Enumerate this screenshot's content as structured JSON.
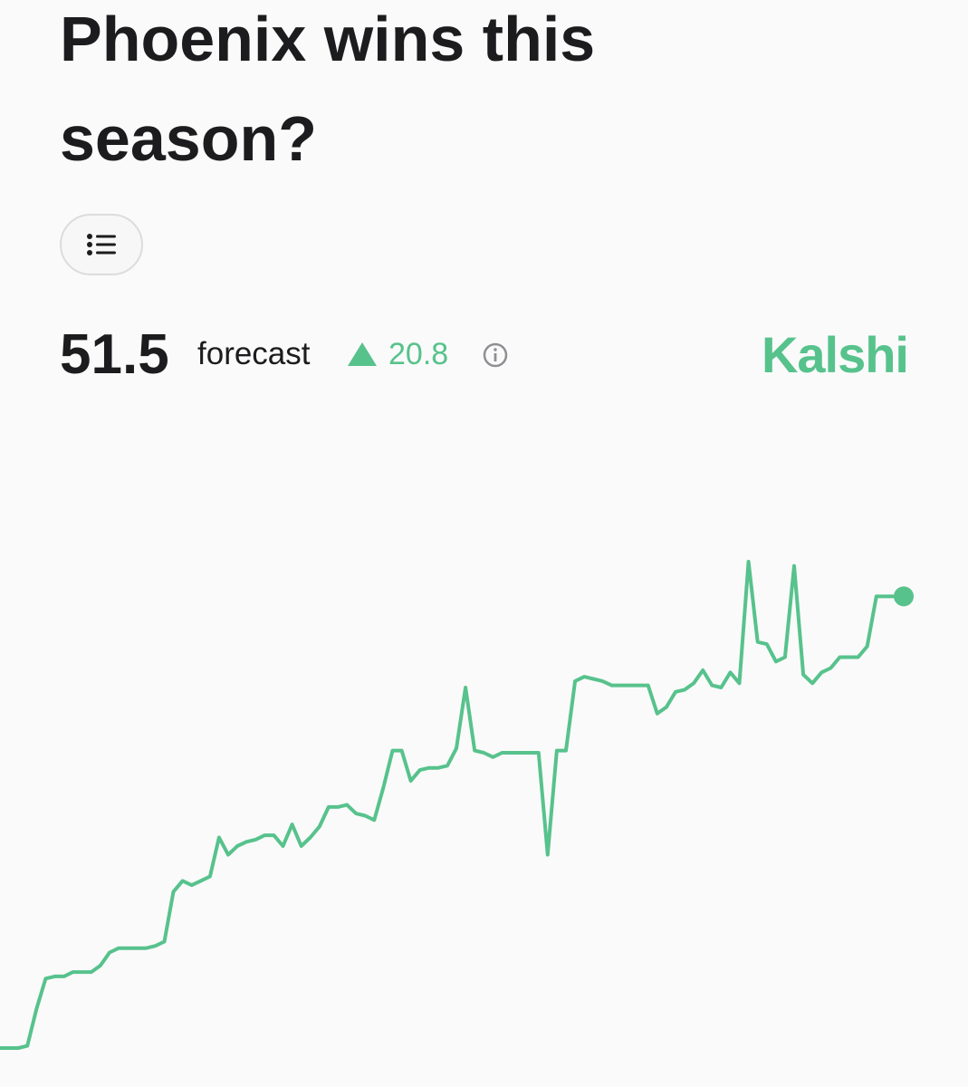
{
  "header": {
    "title": "Phoenix wins this season?",
    "forecast_value": 51.5,
    "forecast_label": "forecast",
    "change": 20.8,
    "brand": "Kalshi"
  },
  "chart_data": {
    "type": "line",
    "color": "#57c28c",
    "values": [
      30.7,
      30.7,
      30.7,
      30.8,
      32.5,
      33.9,
      34.0,
      34.0,
      34.2,
      34.2,
      34.2,
      34.5,
      35.1,
      35.3,
      35.3,
      35.3,
      35.3,
      35.4,
      35.6,
      37.9,
      38.4,
      38.2,
      38.4,
      38.6,
      40.4,
      39.6,
      40.0,
      40.2,
      40.3,
      40.5,
      40.5,
      40.0,
      41.0,
      40.0,
      40.4,
      40.9,
      41.8,
      41.8,
      41.9,
      41.5,
      41.4,
      41.2,
      42.7,
      44.4,
      44.4,
      43.0,
      43.5,
      43.6,
      43.6,
      43.7,
      44.5,
      47.3,
      44.4,
      44.3,
      44.1,
      44.3,
      44.3,
      44.3,
      44.3,
      44.3,
      39.6,
      44.4,
      44.4,
      47.6,
      47.8,
      47.7,
      47.6,
      47.4,
      47.4,
      47.4,
      47.4,
      47.4,
      46.1,
      46.4,
      47.1,
      47.2,
      47.5,
      48.1,
      47.4,
      47.3,
      48.0,
      47.5,
      53.1,
      49.4,
      49.3,
      48.5,
      48.7,
      52.9,
      47.9,
      47.5,
      48.0,
      48.2,
      48.7,
      48.7,
      48.7,
      49.2,
      51.5,
      51.5,
      51.5,
      51.5
    ]
  }
}
